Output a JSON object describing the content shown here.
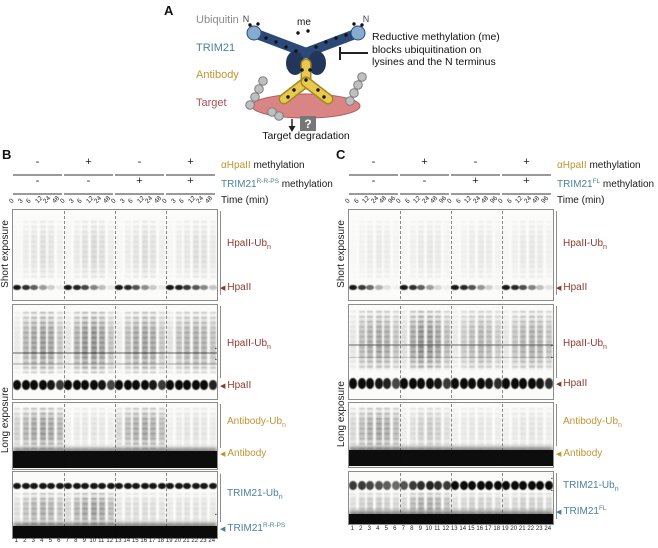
{
  "colors": {
    "hpaii": "#8e382e",
    "antibody": "#bd9630",
    "trim21": "#4d7f9a",
    "ubiquitin": "#8a8a8a",
    "target": "#a85050",
    "bar": "#9a9a9a",
    "text": "#1a1a1a"
  },
  "icons": {
    "arrowhead": "◀",
    "marker": "▪"
  },
  "panelA": {
    "letter": "A",
    "legend": [
      {
        "label": "Ubiquitin"
      },
      {
        "label": "TRIM21"
      },
      {
        "label": "Antibody"
      },
      {
        "label": "Target"
      }
    ],
    "n_left": "N",
    "n_right": "N",
    "me": "me",
    "question": "?",
    "annotation": [
      "Reductive methylation (me)",
      "blocks ubiquitination on",
      "lysines and the N terminus"
    ],
    "caption": "Target degradation"
  },
  "lane_numbers": [
    "1",
    "2",
    "3",
    "4",
    "5",
    "6",
    "7",
    "8",
    "9",
    "10",
    "11",
    "12",
    "13",
    "14",
    "15",
    "16",
    "17",
    "18",
    "19",
    "20",
    "21",
    "22",
    "23",
    "24"
  ],
  "panelB": {
    "letter": "B",
    "rows": [
      {
        "symbols": [
          "-",
          "+",
          "-",
          "+"
        ],
        "name": "αHpaII",
        "sup": "",
        "rest": " methylation"
      },
      {
        "symbols": [
          "-",
          "-",
          "+",
          "+"
        ],
        "name": "TRIM21",
        "sup": "R-R-PS",
        "rest": " methylation"
      }
    ],
    "time_label": "Time (min)",
    "time_points": [
      "0",
      "3",
      "6",
      "12",
      "24",
      "48"
    ],
    "short_exposure": "Short exposure",
    "long_exposure": "Long exposure",
    "gels": [
      {
        "key": "B1",
        "label": "HpaII-Ub",
        "label_sub": "n",
        "arrow": "HpaII",
        "arrow_sup": "",
        "markers": []
      },
      {
        "key": "B2",
        "label": "HpaII-Ub",
        "label_sub": "n",
        "arrow": "HpaII",
        "arrow_sup": "",
        "markers": [
          347,
          358
        ]
      },
      {
        "key": "B3",
        "label": "Antibody-Ub",
        "label_sub": "n",
        "arrow": "Antibody",
        "arrow_sup": "",
        "markers": []
      },
      {
        "key": "B4",
        "label": "TRIM21-Ub",
        "label_sub": "n",
        "arrow": "TRIM21",
        "arrow_sup": "R-R-PS",
        "markers": [
          483,
          513
        ]
      }
    ]
  },
  "panelC": {
    "letter": "C",
    "rows": [
      {
        "symbols": [
          "-",
          "+",
          "-",
          "+"
        ],
        "name": "αHpaII",
        "sup": "",
        "rest": " methylation"
      },
      {
        "symbols": [
          "-",
          "-",
          "+",
          "+"
        ],
        "name": "TRIM21",
        "sup": "FL",
        "rest": " methylation"
      }
    ],
    "time_label": "Time (min)",
    "time_points": [
      "0",
      "6",
      "12",
      "24",
      "48",
      "96"
    ],
    "short_exposure": "Short exposure",
    "long_exposure": "Long exposure",
    "gels": [
      {
        "key": "C1",
        "label": "HpaII-Ub",
        "label_sub": "n",
        "arrow": "HpaII",
        "arrow_sup": "",
        "markers": []
      },
      {
        "key": "C2",
        "label": "HpaII-Ub",
        "label_sub": "n",
        "arrow": "HpaII",
        "arrow_sup": "",
        "markers": [
          344,
          356
        ]
      },
      {
        "key": "C3",
        "label": "Antibody-Ub",
        "label_sub": "n",
        "arrow": "Antibody",
        "arrow_sup": "",
        "markers": []
      },
      {
        "key": "C4",
        "label": "TRIM21-Ub",
        "label_sub": "n",
        "arrow": "TRIM21",
        "arrow_sup": "FL",
        "markers": [
          477,
          483,
          489
        ]
      }
    ]
  },
  "gel_render": {
    "B1": {
      "smear_range": [
        0.12,
        0.78
      ],
      "smears": [
        0.03,
        0.1,
        0.16,
        0.2,
        0.16,
        0.08,
        0.04,
        0.12,
        0.2,
        0.24,
        0.2,
        0.1,
        0.03,
        0.1,
        0.17,
        0.22,
        0.18,
        0.09,
        0.04,
        0.1,
        0.15,
        0.2,
        0.18,
        0.12
      ],
      "bands": [
        {
          "y": 0.83,
          "h": 0.06,
          "vals": [
            0.95,
            0.85,
            0.65,
            0.4,
            0.18,
            0.06,
            0.95,
            0.9,
            0.75,
            0.5,
            0.25,
            0.08,
            0.95,
            0.88,
            0.7,
            0.45,
            0.2,
            0.07,
            0.95,
            0.92,
            0.82,
            0.68,
            0.48,
            0.22
          ]
        }
      ]
    },
    "B2": {
      "smear_range": [
        0.07,
        0.72
      ],
      "smears": [
        0.12,
        0.5,
        0.62,
        0.68,
        0.62,
        0.38,
        0.15,
        0.55,
        0.72,
        0.75,
        0.65,
        0.4,
        0.12,
        0.45,
        0.6,
        0.65,
        0.6,
        0.38,
        0.18,
        0.42,
        0.52,
        0.56,
        0.52,
        0.42
      ],
      "bands": [
        {
          "y": 0.8,
          "h": 0.1,
          "vals": [
            1,
            1,
            1,
            1,
            0.95,
            0.8,
            1,
            1,
            1,
            1,
            0.95,
            0.75,
            1,
            1,
            1,
            1,
            0.95,
            0.8,
            1,
            1,
            1,
            1,
            1,
            0.9
          ]
        }
      ],
      "lines": [
        {
          "y": 0.5,
          "alpha": 0.35
        },
        {
          "y": 0.62,
          "alpha": 0.2
        }
      ]
    },
    "B3": {
      "smear_range": [
        0.08,
        0.7
      ],
      "smears": [
        0.3,
        0.5,
        0.6,
        0.65,
        0.6,
        0.5,
        0.08,
        0.12,
        0.15,
        0.16,
        0.14,
        0.1,
        0.25,
        0.45,
        0.55,
        0.6,
        0.55,
        0.45,
        0.08,
        0.12,
        0.16,
        0.18,
        0.15,
        0.12
      ],
      "full_bands": [
        {
          "y": 0.72,
          "h": 0.27,
          "alpha": 0.97
        }
      ]
    },
    "B4": {
      "smear_range": [
        0.32,
        0.8
      ],
      "smears": [
        0.2,
        0.4,
        0.5,
        0.55,
        0.5,
        0.4,
        0.25,
        0.5,
        0.6,
        0.65,
        0.6,
        0.45,
        0.15,
        0.2,
        0.22,
        0.22,
        0.2,
        0.18,
        0.12,
        0.16,
        0.18,
        0.18,
        0.16,
        0.14
      ],
      "bands": [
        {
          "y": 0.16,
          "h": 0.1,
          "vals": [
            0.95,
            0.95,
            0.95,
            0.95,
            0.95,
            0.95,
            0.95,
            0.95,
            0.95,
            0.95,
            0.95,
            0.95,
            0.95,
            0.95,
            0.95,
            0.95,
            0.95,
            0.95,
            0.95,
            0.95,
            0.95,
            0.95,
            0.95,
            0.95
          ]
        }
      ],
      "full_bands": [
        {
          "y": 0.82,
          "h": 0.18,
          "alpha": 0.98
        }
      ]
    },
    "C1": {
      "smear_range": [
        0.12,
        0.78
      ],
      "smears": [
        0.02,
        0.06,
        0.1,
        0.12,
        0.1,
        0.05,
        0.03,
        0.08,
        0.12,
        0.14,
        0.12,
        0.06,
        0.02,
        0.07,
        0.11,
        0.13,
        0.11,
        0.06,
        0.03,
        0.08,
        0.12,
        0.14,
        0.12,
        0.07
      ],
      "bands": [
        {
          "y": 0.83,
          "h": 0.06,
          "vals": [
            0.95,
            0.8,
            0.6,
            0.3,
            0.1,
            0.03,
            0.95,
            0.85,
            0.65,
            0.38,
            0.14,
            0.05,
            0.95,
            0.88,
            0.7,
            0.42,
            0.18,
            0.06,
            0.95,
            0.88,
            0.72,
            0.5,
            0.25,
            0.1
          ]
        }
      ]
    },
    "C2": {
      "smear_range": [
        0.06,
        0.7
      ],
      "smears": [
        0.15,
        0.45,
        0.55,
        0.6,
        0.55,
        0.4,
        0.2,
        0.6,
        0.75,
        0.72,
        0.62,
        0.45,
        0.12,
        0.35,
        0.45,
        0.5,
        0.45,
        0.35,
        0.15,
        0.4,
        0.5,
        0.55,
        0.5,
        0.4
      ],
      "bands": [
        {
          "y": 0.78,
          "h": 0.11,
          "vals": [
            1,
            1,
            1,
            0.95,
            0.9,
            0.75,
            1,
            1,
            1,
            1,
            0.95,
            0.8,
            1,
            1,
            1,
            1,
            0.95,
            0.85,
            1,
            1,
            1,
            1,
            0.95,
            0.85
          ]
        }
      ],
      "lines": [
        {
          "y": 0.42,
          "alpha": 0.35
        },
        {
          "y": 0.55,
          "alpha": 0.2
        }
      ]
    },
    "C3": {
      "smear_range": [
        0.08,
        0.72
      ],
      "smears": [
        0.25,
        0.45,
        0.55,
        0.6,
        0.55,
        0.45,
        0.1,
        0.2,
        0.3,
        0.35,
        0.3,
        0.2,
        0.08,
        0.12,
        0.15,
        0.15,
        0.13,
        0.1,
        0.08,
        0.12,
        0.15,
        0.16,
        0.14,
        0.1
      ],
      "full_bands": [
        {
          "y": 0.74,
          "h": 0.25,
          "alpha": 0.97
        }
      ]
    },
    "C4": {
      "smear_range": [
        0.4,
        0.8
      ],
      "smears": [
        0.2,
        0.3,
        0.35,
        0.35,
        0.3,
        0.25,
        0.25,
        0.45,
        0.55,
        0.55,
        0.5,
        0.4,
        0.2,
        0.25,
        0.3,
        0.3,
        0.28,
        0.25,
        0.2,
        0.25,
        0.3,
        0.3,
        0.28,
        0.25
      ],
      "bands": [
        {
          "y": 0.17,
          "h": 0.18,
          "vals": [
            0.8,
            0.8,
            0.75,
            0.7,
            0.65,
            0.6,
            0.7,
            0.8,
            0.85,
            0.9,
            0.85,
            0.8,
            1,
            1,
            1,
            1,
            1,
            1,
            1,
            1,
            1,
            1,
            1,
            1
          ]
        }
      ],
      "full_bands": [
        {
          "y": 0.8,
          "h": 0.2,
          "alpha": 0.98
        }
      ]
    }
  }
}
